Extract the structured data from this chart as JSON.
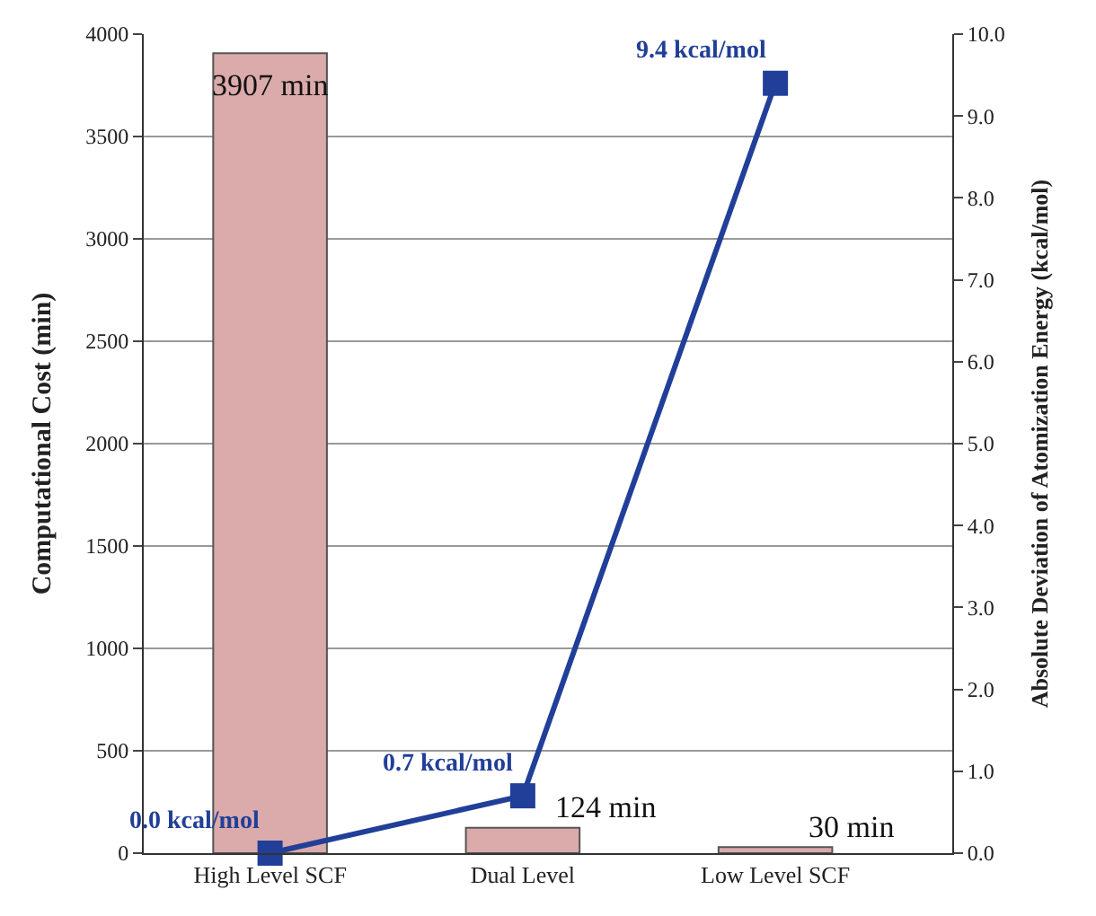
{
  "chart_data": {
    "type": "bar",
    "categories": [
      "High Level SCF",
      "Dual Level",
      "Low Level SCF"
    ],
    "ylabel": "Computational Cost (min)",
    "y2label": "Absolute Deviation of Atomization Energy (kcal/mol)",
    "ylim": [
      0,
      4000
    ],
    "yticks": [
      0,
      500,
      1000,
      1500,
      2000,
      2500,
      3000,
      3500,
      4000
    ],
    "y2lim": [
      0,
      10
    ],
    "y2ticks": [
      {
        "value": 0,
        "label": "0.0"
      },
      {
        "value": 1,
        "label": "1.0"
      },
      {
        "value": 2,
        "label": "2.0"
      },
      {
        "value": 3,
        "label": "3.0"
      },
      {
        "value": 4,
        "label": "4.0"
      },
      {
        "value": 5,
        "label": "5.0"
      },
      {
        "value": 6,
        "label": "6.0"
      },
      {
        "value": 7,
        "label": "7.0"
      },
      {
        "value": 8,
        "label": "8.0"
      },
      {
        "value": 9,
        "label": "9.0"
      },
      {
        "value": 10,
        "label": "10.0"
      }
    ],
    "grid": "y",
    "series": [
      {
        "type": "bar",
        "color": "#dbaaaa",
        "values": [
          3907,
          124,
          30
        ],
        "value_labels": [
          "3907 min",
          "124 min",
          "30 min"
        ]
      },
      {
        "type": "line",
        "axis": "y2",
        "color": "#213f99",
        "marker": "square",
        "line_style": "solid",
        "values": [
          0.0,
          0.7,
          9.4
        ],
        "value_labels": [
          "0.0 kcal/mol",
          "0.7 kcal/mol",
          "9.4 kcal/mol"
        ]
      }
    ]
  }
}
